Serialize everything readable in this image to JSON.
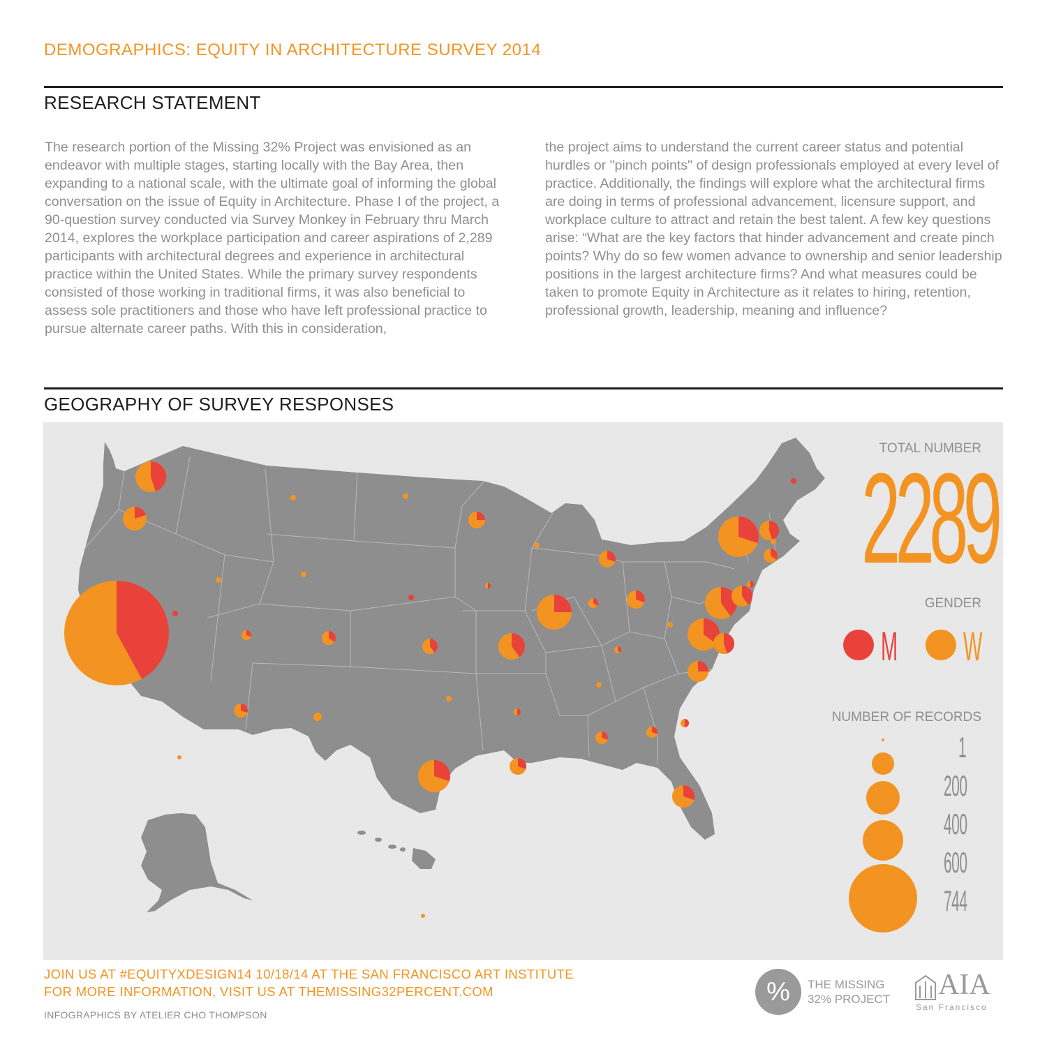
{
  "header": {
    "title": "DEMOGRAPHICS: EQUITY IN ARCHITECTURE SURVEY 2014"
  },
  "research": {
    "title": "RESEARCH STATEMENT",
    "col1": "The research portion of the Missing 32% Project was envisioned as an endeavor with multiple stages, starting locally with the Bay Area, then expanding to a national scale, with the ultimate goal of informing the global conversation on the issue of Equity in Architecture. Phase I of the project, a 90-question survey conducted via Survey Monkey in February thru March 2014, explores the workplace participation and career aspirations of 2,289 participants with architectural degrees and experience in architectural practice within the United States. While the primary survey respondents consisted of those working in traditional firms, it was also beneficial to assess sole practitioners and those who have left professional practice to pursue alternate career paths. With this in consideration,",
    "col2": "the project aims to understand the current career status and potential hurdles or \"pinch points\" of design professionals employed at every level of practice. Additionally, the findings will explore what the architectural firms are doing in terms of professional advancement, licensure support, and workplace culture to attract and retain the best talent. A few key questions arise: “What are the key factors that hinder advancement and create pinch points? Why do so few women advance to ownership and senior leadership positions in the largest architecture firms?  And what measures could be taken to promote Equity in Architecture as it relates to hiring, retention, professional growth, leadership, meaning and influence?"
  },
  "geography": {
    "title": "GEOGRAPHY OF SURVEY RESPONSES",
    "total_label": "TOTAL NUMBER",
    "total_value": "2289",
    "gender_label": "GENDER",
    "gender_m": "M",
    "gender_w": "W",
    "records_label": "NUMBER OF RECORDS",
    "records_scale": [
      "1",
      "200",
      "400",
      "600",
      "744"
    ]
  },
  "colors": {
    "men": "#e8423a",
    "women": "#f39422",
    "land": "#8e8e8e",
    "panel": "#e8e8e8",
    "border": "#b9b9b9"
  },
  "footer": {
    "line1": "JOIN US AT #EQUITYXDESIGN14 10/18/14 AT THE SAN FRANCISCO ART INSTITUTE",
    "line2": "FOR MORE INFORMATION, VISIT US AT THEMISSING32PERCENT.COM",
    "credit": "INFOGRAPHICS BY ATELIER CHO THOMPSON",
    "logo_symbol": "%",
    "logo_text1": "THE MISSING",
    "logo_text2": "32% PROJECT",
    "aia_text": "AIA",
    "aia_sub": "San Francisco"
  }
}
